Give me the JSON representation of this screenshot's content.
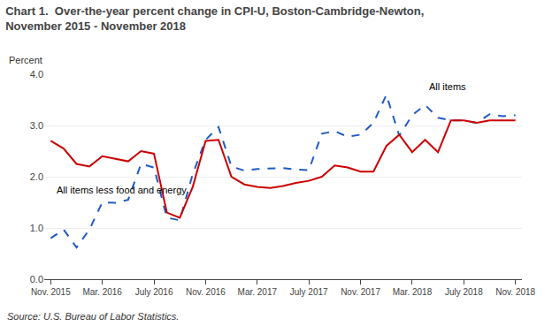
{
  "chart_data": {
    "type": "line",
    "title": "Chart 1.  Over-the-year percent change in CPI-U, Boston-Cambridge-Newton,",
    "subtitle": "November 2015 - November 2018",
    "ylabel": "Percent",
    "source": "Source: U.S. Bureau of Labor Statistics.",
    "categories": [
      "Nov. 2015",
      null,
      null,
      null,
      "Mar. 2016",
      null,
      null,
      null,
      "July 2016",
      null,
      null,
      null,
      "Nov. 2016",
      null,
      null,
      null,
      "Mar. 2017",
      null,
      null,
      null,
      "July 2017",
      null,
      null,
      null,
      "Nov. 2017",
      null,
      null,
      null,
      "Mar. 2018",
      null,
      null,
      null,
      "July 2018",
      null,
      null,
      null,
      "Nov. 2018"
    ],
    "series": [
      {
        "color": "#1F5BC4",
        "line_style": "dashed",
        "values": [
          0.8,
          0.97,
          0.62,
          0.97,
          1.5,
          1.49,
          1.55,
          2.25,
          2.18,
          1.2,
          1.15,
          2.05,
          2.72,
          2.97,
          2.2,
          2.12,
          2.15,
          2.16,
          2.17,
          2.14,
          2.13,
          2.84,
          2.89,
          2.78,
          2.82,
          3.05,
          3.6,
          2.8,
          3.2,
          3.4,
          3.15,
          3.1,
          3.1,
          3.05,
          3.22,
          3.18,
          3.2
        ]
      },
      {
        "color": "#CC0000",
        "line_style": "solid",
        "values": [
          2.7,
          2.55,
          2.25,
          2.2,
          2.4,
          2.35,
          2.3,
          2.5,
          2.45,
          1.3,
          1.2,
          1.8,
          2.7,
          2.72,
          2.0,
          1.85,
          1.8,
          1.78,
          1.82,
          1.88,
          1.92,
          2.0,
          2.22,
          2.18,
          2.1,
          2.1,
          2.6,
          2.82,
          2.48,
          2.72,
          2.48,
          3.1,
          3.1,
          3.05,
          3.1,
          3.1,
          3.1
        ]
      }
    ],
    "annotations": [
      {
        "text": "All items",
        "x": 29.2,
        "y": 3.62
      },
      {
        "text": "All items less food and energy",
        "x": 0.3,
        "y": 1.88
      }
    ],
    "ylim": [
      0.0,
      4.0
    ],
    "yticks": [
      {
        "value": 0,
        "label": "0.0"
      },
      {
        "value": 1,
        "label": "1.0"
      },
      {
        "value": 2,
        "label": "2.0"
      },
      {
        "value": 3,
        "label": "3.0"
      },
      {
        "value": 4,
        "label": "4.0"
      }
    ],
    "grid": true
  }
}
